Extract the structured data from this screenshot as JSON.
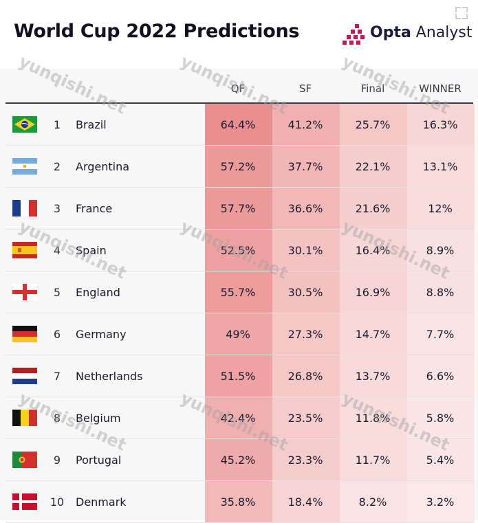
{
  "header": {
    "title": "World Cup 2022 Predictions",
    "brand_bold": "Opta",
    "brand_light": " Analyst",
    "brand_color": "#c2185b"
  },
  "watermark": "yunqishi.net",
  "chart_data": {
    "type": "table",
    "title": "World Cup 2022 Predictions",
    "columns": [
      "QF",
      "SF",
      "Final",
      "WINNER"
    ],
    "heat_color": "#e57373",
    "rows": [
      {
        "rank": "1",
        "team": "Brazil",
        "flag": "brazil-flag-icon",
        "values": [
          "64.4%",
          "41.2%",
          "25.7%",
          "16.3%"
        ]
      },
      {
        "rank": "2",
        "team": "Argentina",
        "flag": "argentina-flag-icon",
        "values": [
          "57.2%",
          "37.7%",
          "22.1%",
          "13.1%"
        ]
      },
      {
        "rank": "3",
        "team": "France",
        "flag": "france-flag-icon",
        "values": [
          "57.7%",
          "36.6%",
          "21.6%",
          "12%"
        ]
      },
      {
        "rank": "4",
        "team": "Spain",
        "flag": "spain-flag-icon",
        "values": [
          "52.5%",
          "30.1%",
          "16.4%",
          "8.9%"
        ]
      },
      {
        "rank": "5",
        "team": "England",
        "flag": "england-flag-icon",
        "values": [
          "55.7%",
          "30.5%",
          "16.9%",
          "8.8%"
        ]
      },
      {
        "rank": "6",
        "team": "Germany",
        "flag": "germany-flag-icon",
        "values": [
          "49%",
          "27.3%",
          "14.7%",
          "7.7%"
        ]
      },
      {
        "rank": "7",
        "team": "Netherlands",
        "flag": "netherlands-flag-icon",
        "values": [
          "51.5%",
          "26.8%",
          "13.7%",
          "6.6%"
        ]
      },
      {
        "rank": "8",
        "team": "Belgium",
        "flag": "belgium-flag-icon",
        "values": [
          "42.4%",
          "23.5%",
          "11.8%",
          "5.8%"
        ]
      },
      {
        "rank": "9",
        "team": "Portugal",
        "flag": "portugal-flag-icon",
        "values": [
          "45.2%",
          "23.3%",
          "11.7%",
          "5.4%"
        ]
      },
      {
        "rank": "10",
        "team": "Denmark",
        "flag": "denmark-flag-icon",
        "values": [
          "35.8%",
          "18.4%",
          "8.2%",
          "3.2%"
        ]
      }
    ]
  }
}
